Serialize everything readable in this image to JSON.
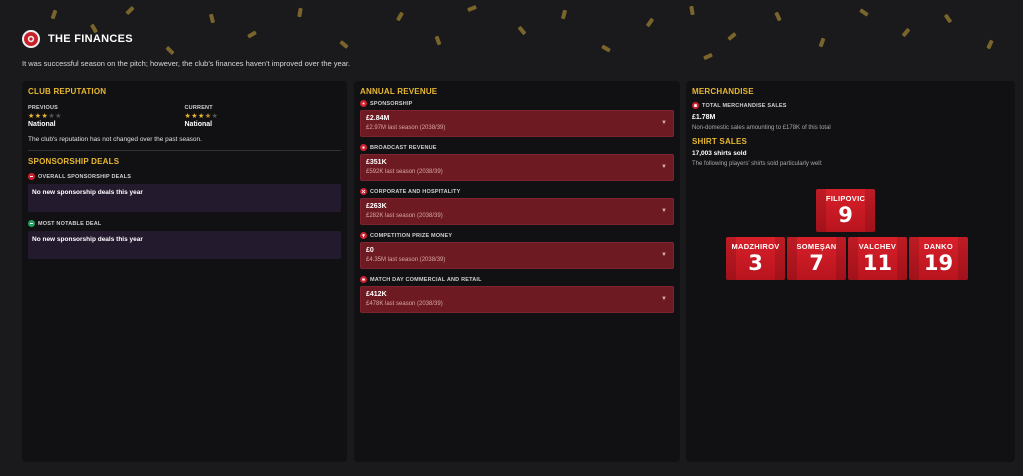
{
  "header": {
    "title": "THE FINANCES",
    "icon": "club-crest-icon",
    "subtitle": "It was successful season on the pitch; however, the club's finances haven't improved over the year."
  },
  "colors": {
    "accent": "#e8b830",
    "revenue_box": "#6e1a22",
    "deal_box": "#241a2e",
    "shirt_red": "#d8202a",
    "background": "#1a1a1c",
    "panel": "#111114"
  },
  "left": {
    "reputation_title": "CLUB REPUTATION",
    "previous_label": "PREVIOUS",
    "previous_stars": 3,
    "previous_value": "National",
    "current_label": "CURRENT",
    "current_stars": 3.5,
    "current_value": "National",
    "note": "The club's reputation has not changed over the past season.",
    "sponsorship_title": "SPONSORSHIP DEALS",
    "overall_label": "OVERALL SPONSORSHIP DEALS",
    "overall_value": "No new sponsorship deals this year",
    "notable_label": "MOST NOTABLE DEAL",
    "notable_value": "No new sponsorship deals this year"
  },
  "revenue": {
    "title": "ANNUAL REVENUE",
    "items": [
      {
        "label": "SPONSORSHIP",
        "value": "£2.84M",
        "last": "£2.97M last season (2038/39)",
        "icon": "sponsorship-icon"
      },
      {
        "label": "BROADCAST REVENUE",
        "value": "£351K",
        "last": "£592K last season (2038/39)",
        "icon": "broadcast-icon"
      },
      {
        "label": "CORPORATE AND HOSPITALITY",
        "value": "£263K",
        "last": "£282K last season (2038/39)",
        "icon": "hospitality-icon"
      },
      {
        "label": "COMPETITION PRIZE MONEY",
        "value": "£0",
        "last": "£4.35M last season (2038/39)",
        "icon": "trophy-icon"
      },
      {
        "label": "MATCH DAY COMMERCIAL AND RETAIL",
        "value": "£412K",
        "last": "£478K last season (2038/39)",
        "icon": "retail-icon"
      }
    ]
  },
  "merch": {
    "title": "MERCHANDISE",
    "total_label": "TOTAL MERCHANDISE SALES",
    "total_value": "£1.78M",
    "total_note": "Non-domestic sales amounting to £178K of this total",
    "shirt_title": "SHIRT SALES",
    "shirt_count": "17,003 shirts sold",
    "shirt_note": "The following players' shirts sold particularly well:",
    "shirts": [
      {
        "name": "FILIPOVIC",
        "number": "9"
      },
      {
        "name": "MADZHIROV",
        "number": "3"
      },
      {
        "name": "SOMEŞAN",
        "number": "7"
      },
      {
        "name": "VALCHEV",
        "number": "11"
      },
      {
        "name": "DANKO",
        "number": "19"
      }
    ]
  }
}
